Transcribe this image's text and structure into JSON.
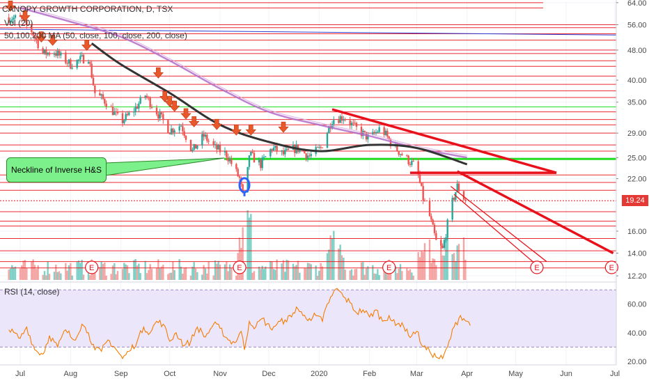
{
  "header": {
    "symbol_title": "CANOPY GROWTH CORPORATION, D, TSX",
    "volume_label": "Vol (20)",
    "ma_label": "50,100,200 MA (50, close, 100, close, 200, close)",
    "rsi_label": "RSI (14, close)"
  },
  "annotation": {
    "text": "Neckline of Inverse H&S"
  },
  "last_price": "19.24",
  "colors": {
    "up": "#26a69a",
    "down": "#ef5350",
    "ma50": "#333333",
    "ma200": "#b16cc8",
    "rsi": "#f57c00",
    "rsi_band": "#ece6fb",
    "trendline": "#e8111b",
    "neckline": "#22dd22"
  },
  "chart_data": [
    {
      "type": "candlestick",
      "title": "CANOPY GROWTH CORPORATION, D, TSX",
      "scale": "log",
      "ylim": [
        11.9,
        64.5
      ],
      "y_ticks": [
        "64.00",
        "56.00",
        "48.00",
        "40.00",
        "35.00",
        "29.00",
        "25.00",
        "22.00",
        "16.00",
        "14.00",
        "12.20"
      ],
      "x_ticks": [
        "Jul",
        "Aug",
        "Sep",
        "Oct",
        "Nov",
        "Dec",
        "2020",
        "Feb",
        "Mar",
        "Apr",
        "May",
        "Jun",
        "Jul"
      ],
      "price_anchors": [
        [
          "Jun 24",
          58.5
        ],
        [
          "Jul 1",
          58.0
        ],
        [
          "Jul 8",
          54.0
        ],
        [
          "Jul 15",
          47.0
        ],
        [
          "Jul 22",
          47.5
        ],
        [
          "Aug 1",
          44.0
        ],
        [
          "Aug 8",
          45.5
        ],
        [
          "Aug 12",
          46.0
        ],
        [
          "Aug 16",
          37.0
        ],
        [
          "Aug 23",
          35.0
        ],
        [
          "Sep 1",
          31.0
        ],
        [
          "Sep 8",
          33.0
        ],
        [
          "Sep 16",
          36.5
        ],
        [
          "Sep 23",
          33.0
        ],
        [
          "Oct 1",
          29.5
        ],
        [
          "Oct 8",
          30.5
        ],
        [
          "Oct 15",
          26.0
        ],
        [
          "Oct 22",
          28.5
        ],
        [
          "Oct 29",
          26.5
        ],
        [
          "Nov 5",
          25.5
        ],
        [
          "Nov 13",
          22.0
        ],
        [
          "Nov 16",
          18.8
        ],
        [
          "Nov 19",
          25.5
        ],
        [
          "Nov 26",
          24.0
        ],
        [
          "Dec 3",
          26.5
        ],
        [
          "Dec 10",
          25.5
        ],
        [
          "Dec 18",
          26.5
        ],
        [
          "Dec 26",
          25.2
        ],
        [
          "Jan 2",
          26.5
        ],
        [
          "Jan 9",
          31.5
        ],
        [
          "Jan 16",
          32.0
        ],
        [
          "Jan 23",
          30.0
        ],
        [
          "Feb 1",
          28.0
        ],
        [
          "Feb 8",
          30.0
        ],
        [
          "Feb 15",
          27.0
        ],
        [
          "Feb 23",
          25.0
        ],
        [
          "Mar 1",
          23.5
        ],
        [
          "Mar 5",
          19.5
        ],
        [
          "Mar 9",
          17.5
        ],
        [
          "Mar 13",
          15.0
        ],
        [
          "Mar 17",
          14.3
        ],
        [
          "Mar 22",
          18.5
        ],
        [
          "Mar 26",
          21.0
        ],
        [
          "Mar 31",
          19.24
        ]
      ],
      "moving_averages": [
        {
          "name": "MA 50",
          "points": [
            [
              "Aug 14",
              50.0
            ],
            [
              "Sep 1",
              44.0
            ],
            [
              "Oct 1",
              37.0
            ],
            [
              "Nov 1",
              30.5
            ],
            [
              "Dec 1",
              27.5
            ],
            [
              "Jan 1",
              26.0
            ],
            [
              "Feb 1",
              27.0
            ],
            [
              "Mar 1",
              26.5
            ],
            [
              "Apr 1",
              24.0
            ]
          ]
        },
        {
          "name": "MA 200",
          "points": [
            [
              "Jul 1",
              62.0
            ],
            [
              "Aug 1",
              57.0
            ],
            [
              "Sep 1",
              52.0
            ],
            [
              "Oct 1",
              45.0
            ],
            [
              "Nov 1",
              38.0
            ],
            [
              "Dec 1",
              33.0
            ],
            [
              "Jan 1",
              30.5
            ],
            [
              "Feb 1",
              28.5
            ],
            [
              "Mar 1",
              26.5
            ],
            [
              "Apr 1",
              25.0
            ]
          ]
        }
      ],
      "horizontal_levels": [
        64.0,
        62.0,
        56.0,
        55.0,
        53.0,
        51.0,
        48.0,
        47.0,
        45.0,
        43.5,
        41.0,
        39.0,
        37.5,
        36.0,
        34.0,
        33.0,
        31.5,
        30.5,
        29.0,
        27.0,
        26.0,
        22.5,
        21.5,
        20.5,
        18.0,
        17.0,
        16.5,
        15.3,
        14.2,
        13.3,
        12.8
      ],
      "support_levels": [
        34.0,
        24.8
      ],
      "trendlines": [
        {
          "from": [
            "Jan 9",
            33.5
          ],
          "to": [
            "May 26",
            22.8
          ],
          "weight": "bold"
        },
        {
          "from": [
            "Feb 26",
            22.8
          ],
          "to": [
            "May 26",
            22.8
          ],
          "weight": "bold"
        },
        {
          "from": [
            "Mar 26",
            23.0
          ],
          "to": [
            "Jun 30",
            14.0
          ],
          "weight": "bold"
        },
        {
          "from": [
            "Mar 24",
            20.0
          ],
          "to": [
            "May 16",
            12.8
          ],
          "weight": "thin"
        },
        {
          "from": [
            "Mar 22",
            21.0
          ],
          "to": [
            "May 20",
            13.3
          ],
          "weight": "thin"
        }
      ],
      "down_arrows": [
        [
          "Jun 25",
          61.5
        ],
        [
          "Jul 4",
          58.0
        ],
        [
          "Jul 14",
          51.0
        ],
        [
          "Jul 21",
          50.0
        ],
        [
          "Aug 11",
          48.5
        ],
        [
          "Sep 24",
          41.0
        ],
        [
          "Sep 28",
          35.5
        ],
        [
          "Oct 1",
          34.5
        ],
        [
          "Oct 4",
          33.5
        ],
        [
          "Oct 11",
          32.0
        ],
        [
          "Oct 16",
          30.5
        ],
        [
          "Oct 30",
          30.0
        ],
        [
          "Nov 11",
          29.0
        ],
        [
          "Nov 20",
          29.0
        ],
        [
          "Dec 10",
          29.5
        ]
      ],
      "marker": {
        "date": "Nov 16",
        "price": 20.8
      },
      "last_price": 19.24
    },
    {
      "type": "bar",
      "title": "Vol (20)",
      "earnings_markers": [
        "Jun 29",
        "Aug 14",
        "Nov 13",
        "Feb 13",
        "May 14"
      ],
      "earnings_label": "E"
    },
    {
      "type": "line",
      "title": "RSI (14, close)",
      "ylim": [
        17.5,
        74.0
      ],
      "y_ticks": [
        "60.00",
        "40.00",
        "20.00"
      ],
      "band": [
        30,
        70
      ],
      "points": [
        [
          "Jun 24",
          42
        ],
        [
          "Jul 1",
          36
        ],
        [
          "Jul 5",
          44
        ],
        [
          "Jul 10",
          28
        ],
        [
          "Jul 15",
          25
        ],
        [
          "Jul 19",
          38
        ],
        [
          "Jul 24",
          30
        ],
        [
          "Jul 29",
          42
        ],
        [
          "Aug 3",
          35
        ],
        [
          "Aug 8",
          46
        ],
        [
          "Aug 12",
          40
        ],
        [
          "Aug 16",
          28
        ],
        [
          "Aug 20",
          27
        ],
        [
          "Aug 24",
          35
        ],
        [
          "Aug 28",
          30
        ],
        [
          "Sep 2",
          22
        ],
        [
          "Sep 6",
          27
        ],
        [
          "Sep 11",
          34
        ],
        [
          "Sep 15",
          44
        ],
        [
          "Sep 19",
          40
        ],
        [
          "Sep 23",
          48
        ],
        [
          "Sep 27",
          46
        ],
        [
          "Oct 1",
          34
        ],
        [
          "Oct 5",
          40
        ],
        [
          "Oct 10",
          31
        ],
        [
          "Oct 14",
          34
        ],
        [
          "Oct 18",
          44
        ],
        [
          "Oct 23",
          37
        ],
        [
          "Oct 28",
          46
        ],
        [
          "Nov 1",
          43
        ],
        [
          "Nov 6",
          35
        ],
        [
          "Nov 10",
          33
        ],
        [
          "Nov 14",
          41
        ],
        [
          "Nov 16",
          28
        ],
        [
          "Nov 19",
          48
        ],
        [
          "Nov 23",
          44
        ],
        [
          "Nov 27",
          50
        ],
        [
          "Dec 2",
          43
        ],
        [
          "Dec 6",
          46
        ],
        [
          "Dec 11",
          49
        ],
        [
          "Dec 15",
          51
        ],
        [
          "Dec 18",
          58
        ],
        [
          "Dec 22",
          52
        ],
        [
          "Dec 26",
          50
        ],
        [
          "Dec 30",
          52
        ],
        [
          "Jan 3",
          48
        ],
        [
          "Jan 6",
          60
        ],
        [
          "Jan 9",
          66
        ],
        [
          "Jan 12",
          71
        ],
        [
          "Jan 16",
          65
        ],
        [
          "Jan 20",
          61
        ],
        [
          "Jan 24",
          54
        ],
        [
          "Jan 28",
          56
        ],
        [
          "Feb 1",
          51
        ],
        [
          "Feb 5",
          56
        ],
        [
          "Feb 9",
          48
        ],
        [
          "Feb 13",
          52
        ],
        [
          "Feb 17",
          45
        ],
        [
          "Feb 21",
          47
        ],
        [
          "Feb 25",
          38
        ],
        [
          "Mar 1",
          41
        ],
        [
          "Mar 5",
          30
        ],
        [
          "Mar 9",
          27
        ],
        [
          "Mar 13",
          23
        ],
        [
          "Mar 17",
          22
        ],
        [
          "Mar 20",
          30
        ],
        [
          "Mar 24",
          44
        ],
        [
          "Mar 28",
          52
        ],
        [
          "Apr 1",
          48
        ],
        [
          "Apr 3",
          45
        ]
      ]
    }
  ]
}
